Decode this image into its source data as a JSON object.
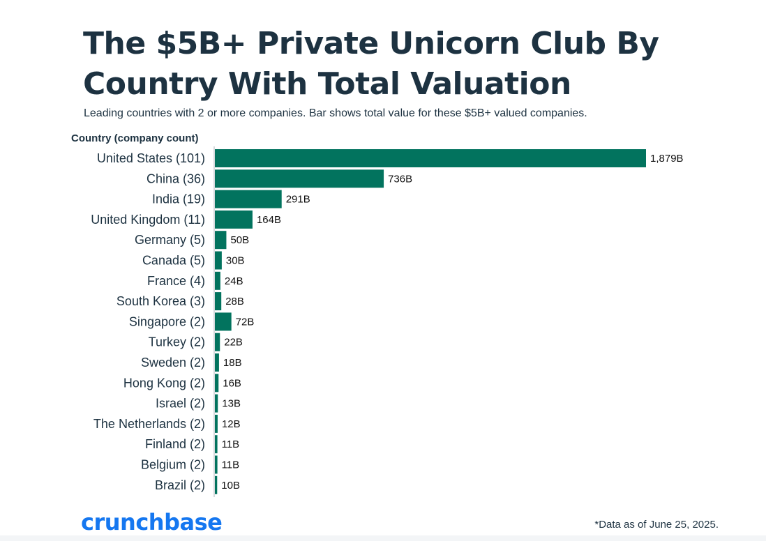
{
  "header": {
    "title": "The $5B+ Private Unicorn Club By Country With Total Valuation",
    "subtitle": "Leading countries with 2 or more companies. Bar shows total value for these $5B+ valued companies."
  },
  "chart_data": {
    "type": "bar",
    "orientation": "horizontal",
    "ylabel": "Country (company count)",
    "categories": [
      "United States (101)",
      "China (36)",
      "India (19)",
      "United Kingdom (11)",
      "Germany (5)",
      "Canada (5)",
      "France (4)",
      "South Korea (3)",
      "Singapore (2)",
      "Turkey (2)",
      "Sweden (2)",
      "Hong Kong (2)",
      "Israel (2)",
      "The Netherlands (2)",
      "Finland (2)",
      "Belgium (2)",
      "Brazil (2)"
    ],
    "values": [
      1879,
      736,
      291,
      164,
      50,
      30,
      24,
      28,
      72,
      22,
      18,
      16,
      13,
      12,
      11,
      11,
      10
    ],
    "value_labels": [
      "1,879B",
      "736B",
      "291B",
      "164B",
      "50B",
      "30B",
      "24B",
      "28B",
      "72B",
      "22B",
      "18B",
      "16B",
      "13B",
      "12B",
      "11B",
      "11B",
      "10B"
    ],
    "xlim": [
      0,
      1879
    ],
    "grid": false,
    "legend": "none",
    "bar_color": "#02735e"
  },
  "footer": {
    "brand": "crunchbase",
    "note": "*Data as of June 25, 2025.",
    "brand_color": "#1577f0"
  },
  "colors": {
    "text": "#1d3241",
    "axis_line": "#c8cdd2"
  }
}
